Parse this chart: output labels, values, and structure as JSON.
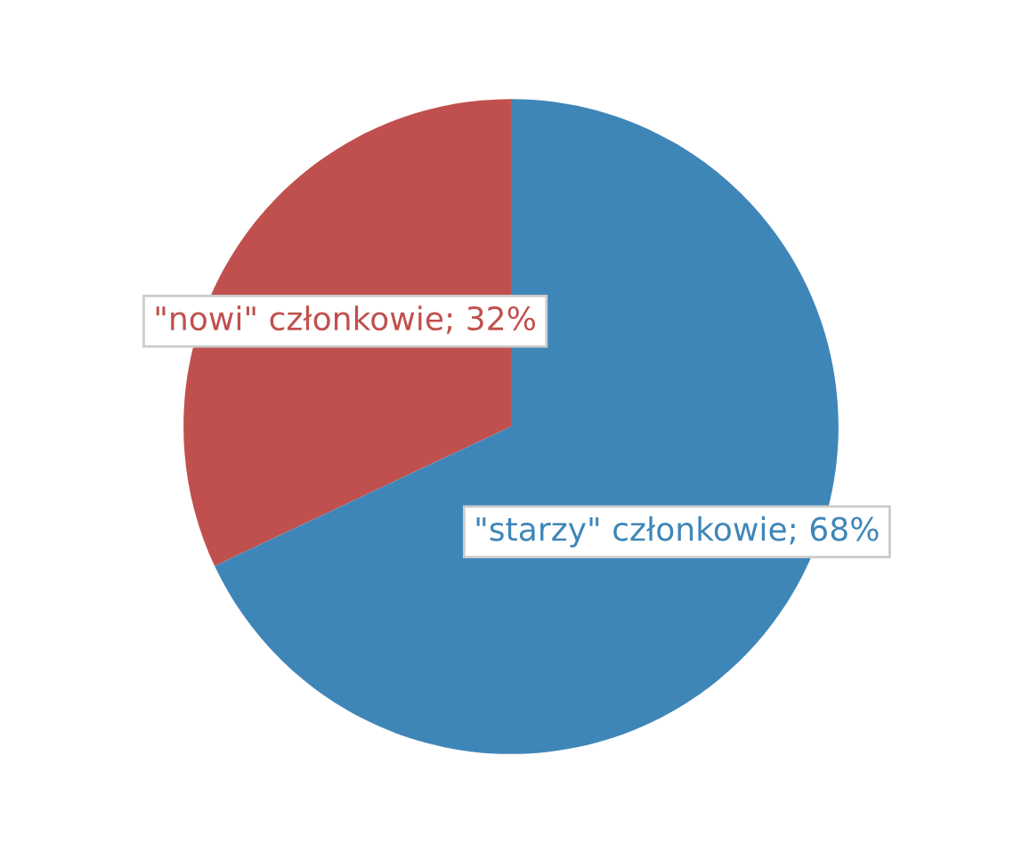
{
  "chart_data": {
    "type": "pie",
    "categories": [
      "\"nowi\" członkowie",
      "\"starzy\" członkowie"
    ],
    "values": [
      32,
      68
    ],
    "value_labels": [
      "32%",
      "68%"
    ],
    "colors": [
      "#c0504d",
      "#3f86b8"
    ]
  }
}
